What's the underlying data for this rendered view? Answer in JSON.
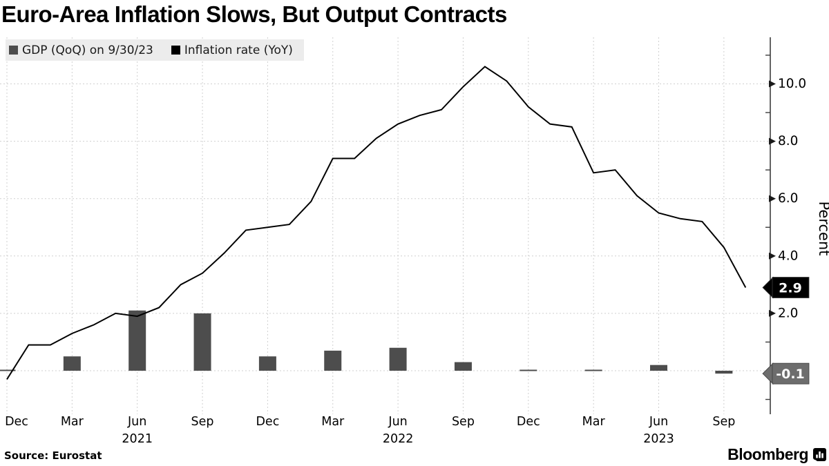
{
  "header": {
    "title": "Euro-Area Inflation Slows, But Output Contracts"
  },
  "legend": {
    "items": [
      {
        "label": "GDP (QoQ) on 9/30/23",
        "color": "#4d4d4d"
      },
      {
        "label": "Inflation rate (YoY)",
        "color": "#000000"
      }
    ]
  },
  "footer": {
    "source": "Source: Eurostat",
    "brand": "Bloomberg"
  },
  "tags": {
    "inflation": {
      "text": "2.9",
      "value": 2.9,
      "bg": "#000000",
      "fg": "#ffffff"
    },
    "gdp": {
      "text": "-0.1",
      "value": -0.1,
      "bg": "#6d6d6d",
      "fg": "#ffffff"
    }
  },
  "chart_data": {
    "type": "mixed",
    "title": "Euro-Area Inflation Slows, But Output Contracts",
    "ylabel": "Percent",
    "ylim": [
      -1.5,
      11.6
    ],
    "grid": true,
    "legend_position": "top-left",
    "x_months": [
      "Dec 2020",
      "Jan 2021",
      "Feb 2021",
      "Mar 2021",
      "Apr 2021",
      "May 2021",
      "Jun 2021",
      "Jul 2021",
      "Aug 2021",
      "Sep 2021",
      "Oct 2021",
      "Nov 2021",
      "Dec 2021",
      "Jan 2022",
      "Feb 2022",
      "Mar 2022",
      "Apr 2022",
      "May 2022",
      "Jun 2022",
      "Jul 2022",
      "Aug 2022",
      "Sep 2022",
      "Oct 2022",
      "Nov 2022",
      "Dec 2022",
      "Jan 2023",
      "Feb 2023",
      "Mar 2023",
      "Apr 2023",
      "May 2023",
      "Jun 2023",
      "Jul 2023",
      "Aug 2023",
      "Sep 2023",
      "Oct 2023"
    ],
    "series": [
      {
        "name": "Inflation rate (YoY)",
        "type": "line",
        "color": "#000000",
        "values": [
          -0.3,
          0.9,
          0.9,
          1.3,
          1.6,
          2.0,
          1.9,
          2.2,
          3.0,
          3.4,
          4.1,
          4.9,
          5.0,
          5.1,
          5.9,
          7.4,
          7.4,
          8.1,
          8.6,
          8.9,
          9.1,
          9.9,
          10.6,
          10.1,
          9.2,
          8.6,
          8.5,
          6.9,
          7.0,
          6.1,
          5.5,
          5.3,
          5.2,
          4.3,
          2.9
        ],
        "end_label": "2.9"
      },
      {
        "name": "GDP (QoQ) on 9/30/23",
        "type": "bar",
        "color": "#4d4d4d",
        "x": [
          "Dec 2020",
          "Mar 2021",
          "Jun 2021",
          "Sep 2021",
          "Dec 2021",
          "Mar 2022",
          "Jun 2022",
          "Sep 2022",
          "Dec 2022",
          "Mar 2023",
          "Jun 2023",
          "Sep 2023"
        ],
        "values": [
          0.0,
          0.5,
          2.1,
          2.0,
          0.5,
          0.7,
          0.8,
          0.3,
          0.0,
          0.0,
          0.2,
          -0.1
        ],
        "end_label": "-0.1"
      }
    ],
    "y_axis": {
      "major_values": [
        2,
        4,
        6,
        8,
        10
      ],
      "major_labels": [
        "2.0",
        "4.0",
        "6.0",
        "8.0",
        "10.0"
      ],
      "minor_values": [
        -1,
        1,
        3,
        5,
        7,
        9,
        11
      ]
    },
    "x_axis": {
      "tick_labels": [
        "Dec",
        "Mar",
        "Jun",
        "Sep",
        "Dec",
        "Mar",
        "Jun",
        "Sep",
        "Dec",
        "Mar",
        "Jun",
        "Sep"
      ],
      "year_labels": [
        {
          "text": "2021",
          "under_tick": 2
        },
        {
          "text": "2022",
          "under_tick": 6
        },
        {
          "text": "2023",
          "under_tick": 10
        }
      ]
    },
    "style": {
      "grid_color": "#cfcfcf",
      "axis_color": "#3c3c3c",
      "bar_color": "#4d4d4d",
      "line_color": "#000000"
    }
  }
}
